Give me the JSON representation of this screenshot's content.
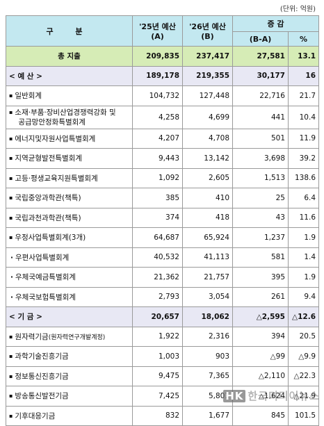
{
  "unit_note": "(단위: 억원)",
  "header": {
    "col0": "구  분",
    "col1_a": "'25년 예산",
    "col1_b": "(A)",
    "col2_a": "'26년 예산",
    "col2_b": "(B)",
    "col3": "증 감",
    "col3_sub": "(B-A)",
    "col4_sub": "%"
  },
  "rows": [
    {
      "label": "총 지출",
      "y25": "209,835",
      "y26": "237,417",
      "diff": "27,581",
      "pct": "13.1"
    },
    {
      "label": "< 예 산 >",
      "y25": "189,178",
      "y26": "219,355",
      "diff": "30,177",
      "pct": "16"
    },
    {
      "label": "일반회계",
      "y25": "104,732",
      "y26": "127,448",
      "diff": "22,716",
      "pct": "21.7"
    },
    {
      "label": "소재·부품·장비산업경쟁력강화 및",
      "label2": "공급망안정화특별회계",
      "y25": "4,258",
      "y26": "4,699",
      "diff": "441",
      "pct": "10.4"
    },
    {
      "label": "에너지및자원사업특별회계",
      "y25": "4,207",
      "y26": "4,708",
      "diff": "501",
      "pct": "11.9"
    },
    {
      "label": "지역균형발전특별회계",
      "y25": "9,443",
      "y26": "13,142",
      "diff": "3,698",
      "pct": "39.2"
    },
    {
      "label": "고등·평생교육지원특별회계",
      "y25": "1,092",
      "y26": "2,605",
      "diff": "1,513",
      "pct": "138.6"
    },
    {
      "label": "국립중앙과학관(책특)",
      "y25": "385",
      "y26": "410",
      "diff": "25",
      "pct": "6.4"
    },
    {
      "label": "국립과천과학관(책특)",
      "y25": "374",
      "y26": "418",
      "diff": "43",
      "pct": "11.6"
    },
    {
      "label": "우정사업특별회계(3개)",
      "y25": "64,687",
      "y26": "65,924",
      "diff": "1,237",
      "pct": "1.9"
    },
    {
      "label": "우편사업특별회계",
      "y25": "40,532",
      "y26": "41,113",
      "diff": "581",
      "pct": "1.4"
    },
    {
      "label": "우체국예금특별회계",
      "y25": "21,362",
      "y26": "21,757",
      "diff": "395",
      "pct": "1.9"
    },
    {
      "label": "우체국보험특별회계",
      "y25": "2,793",
      "y26": "3,054",
      "diff": "261",
      "pct": "9.4"
    },
    {
      "label": "< 기 금 >",
      "y25": "20,657",
      "y26": "18,062",
      "diff": "△2,595",
      "pct": "△12.6"
    },
    {
      "label": "원자력기금",
      "label_small": "(원자력연구개발계정)",
      "y25": "1,922",
      "y26": "2,316",
      "diff": "394",
      "pct": "20.5"
    },
    {
      "label": "과학기술진흥기금",
      "y25": "1,003",
      "y26": "903",
      "diff": "△99",
      "pct": "△9.9"
    },
    {
      "label": "정보통신진흥기금",
      "y25": "9,475",
      "y26": "7,365",
      "diff": "△2,110",
      "pct": "△22.3"
    },
    {
      "label": "방송통신발전기금",
      "y25": "7,425",
      "y26": "5,801",
      "diff": "△1,624",
      "pct": "△21.9"
    },
    {
      "label": "기후대응기금",
      "y25": "832",
      "y26": "1,677",
      "diff": "845",
      "pct": "101.5"
    }
  ],
  "watermark": {
    "logo": "HK",
    "text": "한국미디어뉴스"
  }
}
